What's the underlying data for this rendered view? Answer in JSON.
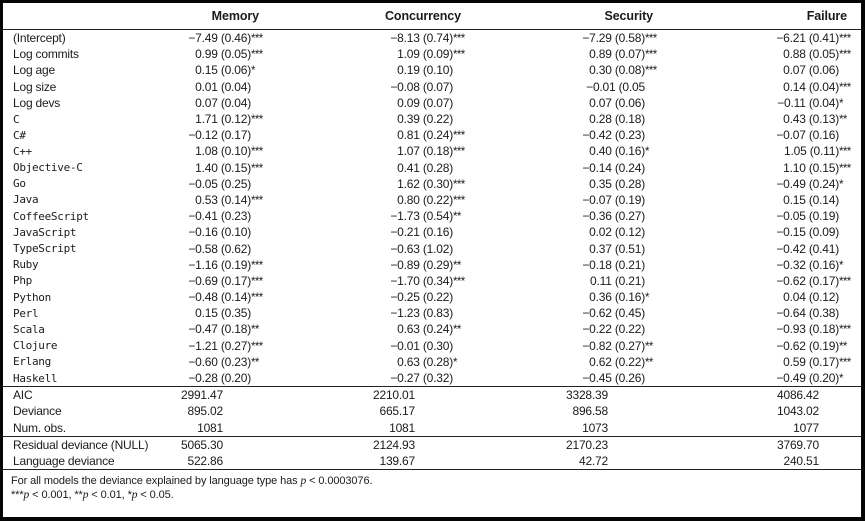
{
  "table": {
    "headers": [
      "Memory",
      "Concurrency",
      "Security",
      "Failure"
    ],
    "rows_coefficients": [
      {
        "label": "(Intercept)",
        "mono": false,
        "cells": [
          "−7.49 (0.46)***",
          "−8.13 (0.74)***",
          "−7.29 (0.58)***",
          "−6.21 (0.41)***"
        ]
      },
      {
        "label": "Log commits",
        "mono": false,
        "cells": [
          "0.99 (0.05)***",
          "1.09 (0.09)***",
          "0.89 (0.07)***",
          "0.88 (0.05)***"
        ]
      },
      {
        "label": "Log age",
        "mono": false,
        "cells": [
          "0.15 (0.06)*",
          "0.19 (0.10)",
          "0.30 (0.08)***",
          "0.07 (0.06)"
        ]
      },
      {
        "label": "Log size",
        "mono": false,
        "cells": [
          "0.01 (0.04)",
          "−0.08 (0.07)",
          "−0.01 (0.05",
          "0.14 (0.04)***"
        ]
      },
      {
        "label": "Log devs",
        "mono": false,
        "cells": [
          "0.07 (0.04)",
          "0.09 (0.07)",
          "0.07 (0.06)",
          "−0.11 (0.04)*"
        ]
      },
      {
        "label": "C",
        "mono": true,
        "cells": [
          "1.71 (0.12)***",
          "0.39 (0.22)",
          "0.28 (0.18)",
          "0.43 (0.13)**"
        ]
      },
      {
        "label": "C#",
        "mono": true,
        "cells": [
          "−0.12 (0.17)",
          "0.81 (0.24)***",
          "−0.42 (0.23)",
          "−0.07 (0.16)"
        ]
      },
      {
        "label": "C++",
        "mono": true,
        "cells": [
          "1.08 (0.10)***",
          "1.07 (0.18)***",
          "0.40 (0.16)*",
          "1.05 (0.11)***"
        ]
      },
      {
        "label": "Objective-C",
        "mono": true,
        "cells": [
          "1.40 (0.15)***",
          "0.41 (0.28)",
          "−0.14 (0.24)",
          "1.10 (0.15)***"
        ]
      },
      {
        "label": "Go",
        "mono": true,
        "cells": [
          "−0.05 (0.25)",
          "1.62 (0.30)***",
          "0.35 (0.28)",
          "−0.49 (0.24)*"
        ]
      },
      {
        "label": "Java",
        "mono": true,
        "cells": [
          "0.53 (0.14)***",
          "0.80 (0.22)***",
          "−0.07 (0.19)",
          "0.15 (0.14)"
        ]
      },
      {
        "label": "CoffeeScript",
        "mono": true,
        "cells": [
          "−0.41 (0.23)",
          "−1.73 (0.54)**",
          "−0.36 (0.27)",
          "−0.05 (0.19)"
        ]
      },
      {
        "label": "JavaScript",
        "mono": true,
        "cells": [
          "−0.16 (0.10)",
          "−0.21 (0.16)",
          "0.02 (0.12)",
          "−0.15 (0.09)"
        ]
      },
      {
        "label": "TypeScript",
        "mono": true,
        "cells": [
          "−0.58 (0.62)",
          "−0.63 (1.02)",
          "0.37 (0.51)",
          "−0.42 (0.41)"
        ]
      },
      {
        "label": "Ruby",
        "mono": true,
        "cells": [
          "−1.16 (0.19)***",
          "−0.89 (0.29)**",
          "−0.18 (0.21)",
          "−0.32 (0.16)*"
        ]
      },
      {
        "label": "Php",
        "mono": true,
        "cells": [
          "−0.69 (0.17)***",
          "−1.70 (0.34)***",
          "0.11 (0.21)",
          "−0.62 (0.17)***"
        ]
      },
      {
        "label": "Python",
        "mono": true,
        "cells": [
          "−0.48 (0.14)***",
          "−0.25 (0.22)",
          "0.36 (0.16)*",
          "0.04 (0.12)"
        ]
      },
      {
        "label": "Perl",
        "mono": true,
        "cells": [
          "0.15 (0.35)",
          "−1.23 (0.83)",
          "−0.62 (0.45)",
          "−0.64 (0.38)"
        ]
      },
      {
        "label": "Scala",
        "mono": true,
        "cells": [
          "−0.47 (0.18)**",
          "0.63 (0.24)**",
          "−0.22 (0.22)",
          "−0.93 (0.18)***"
        ]
      },
      {
        "label": "Clojure",
        "mono": true,
        "cells": [
          "−1.21 (0.27)***",
          "−0.01 (0.30)",
          "−0.82 (0.27)**",
          "−0.62 (0.19)**"
        ]
      },
      {
        "label": "Erlang",
        "mono": true,
        "cells": [
          "−0.60 (0.23)**",
          "0.63 (0.28)*",
          "0.62 (0.22)**",
          "0.59 (0.17)***"
        ]
      },
      {
        "label": "Haskell",
        "mono": true,
        "cells": [
          "−0.28 (0.20)",
          "−0.27 (0.32)",
          "−0.45 (0.26)",
          "−0.49 (0.20)*"
        ]
      }
    ],
    "rows_stats": [
      {
        "label": "AIC",
        "mono": false,
        "cells": [
          "2991.47",
          "2210.01",
          "3328.39",
          "4086.42"
        ]
      },
      {
        "label": "Deviance",
        "mono": false,
        "cells": [
          "895.02",
          "665.17",
          "896.58",
          "1043.02"
        ]
      },
      {
        "label": "Num. obs.",
        "mono": false,
        "cells": [
          "1081",
          "1081",
          "1073",
          "1077"
        ]
      }
    ],
    "rows_deviance": [
      {
        "label": "Residual deviance (NULL)",
        "mono": false,
        "cells": [
          "5065.30",
          "2124.93",
          "2170.23",
          "3769.70"
        ]
      },
      {
        "label": "Language deviance",
        "mono": false,
        "cells": [
          "522.86",
          "139.67",
          "42.72",
          "240.51"
        ]
      }
    ],
    "footnotes": [
      [
        {
          "t": "For all models the deviance explained by language type has "
        },
        {
          "t": "p",
          "i": true
        },
        {
          "t": " < 0.0003076."
        }
      ],
      [
        {
          "t": "***"
        },
        {
          "t": "p",
          "i": true
        },
        {
          "t": " < 0.001, **"
        },
        {
          "t": "p",
          "i": true
        },
        {
          "t": " < 0.01, *"
        },
        {
          "t": "p",
          "i": true
        },
        {
          "t": " < 0.05."
        }
      ]
    ]
  }
}
